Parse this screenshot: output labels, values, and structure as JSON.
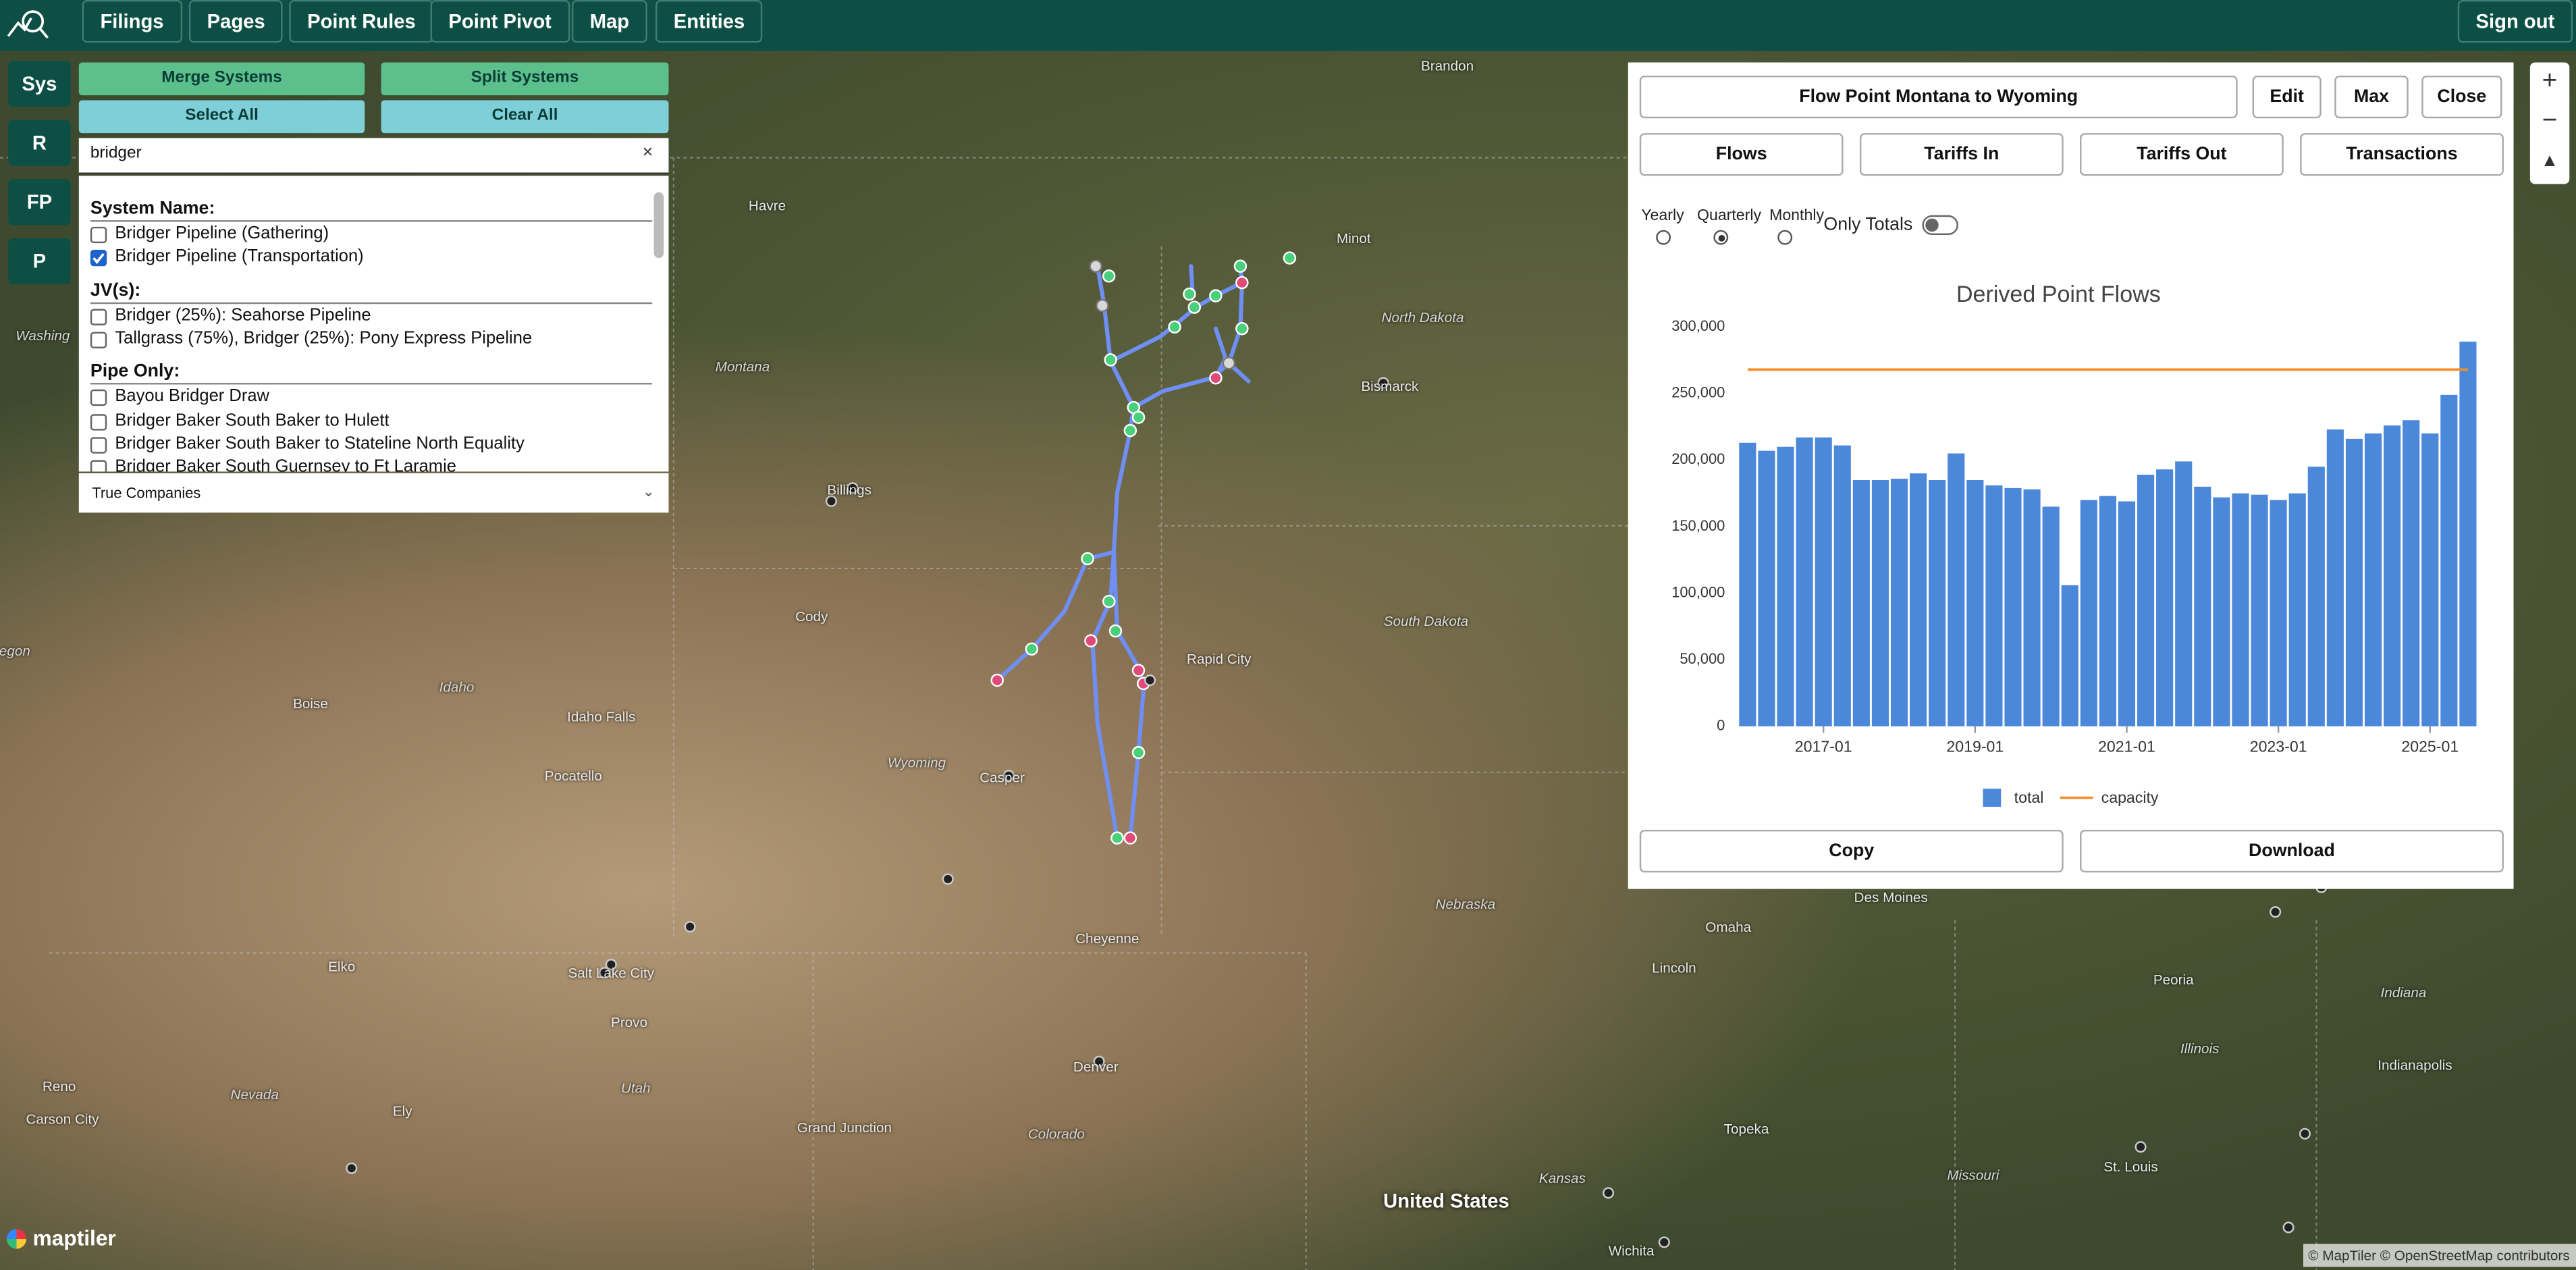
{
  "nav": {
    "buttons": [
      "Filings",
      "Pages",
      "Point Rules",
      "Point Pivot",
      "Map",
      "Entities"
    ],
    "sign_out": "Sign out"
  },
  "side_tabs": [
    "Sys",
    "R",
    "FP",
    "P"
  ],
  "systems_panel": {
    "merge": "Merge Systems",
    "split": "Split Systems",
    "select_all": "Select All",
    "clear_all": "Clear All",
    "search": "bridger",
    "clear_search": "×",
    "sections": [
      {
        "heading": "System Name:",
        "items": [
          {
            "label": "Bridger Pipeline (Gathering)",
            "checked": false
          },
          {
            "label": "Bridger Pipeline (Transportation)",
            "checked": true
          }
        ]
      },
      {
        "heading": "JV(s):",
        "items": [
          {
            "label": "Bridger (25%): Seahorse Pipeline",
            "checked": false
          },
          {
            "label": "Tallgrass (75%), Bridger (25%): Pony Express Pipeline",
            "checked": false
          }
        ]
      },
      {
        "heading": "Pipe Only:",
        "items": [
          {
            "label": "Bayou Bridger Draw",
            "checked": false
          },
          {
            "label": "Bridger Baker South Baker to Hulett",
            "checked": false
          },
          {
            "label": "Bridger Baker South Baker to Stateline North Equality",
            "checked": false
          },
          {
            "label": "Bridger Baker South Guernsey to Ft Laramie",
            "checked": false
          }
        ]
      }
    ],
    "dropdown": "True Companies"
  },
  "map_labels": [
    "Brandon",
    "Minot",
    "North Dakota",
    "Bismarck",
    "Havre",
    "Montana",
    "Billings",
    "Cody",
    "Rapid City",
    "South Dakota",
    "Idaho",
    "Boise",
    "Idaho Falls",
    "Pocatello",
    "Wyoming",
    "Casper",
    "Cheyenne",
    "Nebraska",
    "Elko",
    "Salt Lake City",
    "Provo",
    "Reno",
    "Nevada",
    "Utah",
    "Ely",
    "Carson City",
    "Grand Junction",
    "Denver",
    "Colorado",
    "Kansas",
    "Topeka",
    "Omaha",
    "Lincoln",
    "Des Moines",
    "Peoria",
    "Illinois",
    "Indiana",
    "Indianapolis",
    "Missouri",
    "St. Louis",
    "Wichita",
    "Washing",
    "egon"
  ],
  "map_country": "United States",
  "logo": "maptiler",
  "attribution": "© MapTiler © OpenStreetMap contributors",
  "flow_panel": {
    "title": "Flow Point Montana to Wyoming",
    "edit": "Edit",
    "max": "Max",
    "close": "Close",
    "tabs": [
      "Flows",
      "Tariffs In",
      "Tariffs Out",
      "Transactions"
    ],
    "periods": [
      {
        "label": "Yearly",
        "selected": false
      },
      {
        "label": "Quarterly",
        "selected": true
      },
      {
        "label": "Monthly",
        "selected": false
      }
    ],
    "only_totals": "Only Totals",
    "only_totals_on": false,
    "copy": "Copy",
    "download": "Download"
  },
  "chart_data": {
    "type": "bar",
    "title": "Derived Point Flows",
    "categories": [
      null,
      null,
      null,
      null,
      "2017-01",
      null,
      null,
      null,
      null,
      null,
      null,
      null,
      "2019-01",
      null,
      null,
      null,
      null,
      null,
      null,
      null,
      "2021-01",
      null,
      null,
      null,
      null,
      null,
      null,
      null,
      "2023-01",
      null,
      null,
      null,
      null,
      null,
      null,
      null,
      "2025-01",
      null,
      null
    ],
    "series": [
      {
        "name": "total",
        "color": "#4c88d9",
        "type": "bar",
        "values": [
          213000,
          207000,
          210000,
          217000,
          217000,
          211000,
          185000,
          185000,
          186000,
          190000,
          185000,
          205000,
          185000,
          181000,
          179000,
          178000,
          165000,
          106000,
          170000,
          173000,
          169000,
          189000,
          193000,
          199000,
          180000,
          172000,
          175000,
          174000,
          170000,
          175000,
          195000,
          223000,
          216000,
          220000,
          226000,
          230000,
          220000,
          249000,
          289000
        ]
      },
      {
        "name": "capacity",
        "color": "#f28e2b",
        "type": "line",
        "values": [
          268000,
          268000,
          268000,
          268000,
          268000,
          268000,
          268000,
          268000,
          268000,
          268000,
          268000,
          268000,
          268000,
          268000,
          268000,
          268000,
          268000,
          268000,
          268000,
          268000,
          268000,
          268000,
          268000,
          268000,
          268000,
          268000,
          268000,
          268000,
          268000,
          268000,
          268000,
          268000,
          268000,
          268000,
          268000,
          268000,
          268000,
          268000,
          268000
        ]
      }
    ],
    "ylim": [
      0,
      300000
    ],
    "yticks": [
      0,
      {
        "value": 50000,
        "label": "50,000"
      },
      {
        "value": 100000,
        "label": "100,000"
      },
      {
        "value": 150000,
        "label": "150,000"
      },
      {
        "value": 200000,
        "label": "200,000"
      },
      {
        "value": 250000,
        "label": "250,000"
      },
      {
        "value": 300000,
        "label": "300,000"
      }
    ],
    "grid": false,
    "legend": "bottom"
  }
}
